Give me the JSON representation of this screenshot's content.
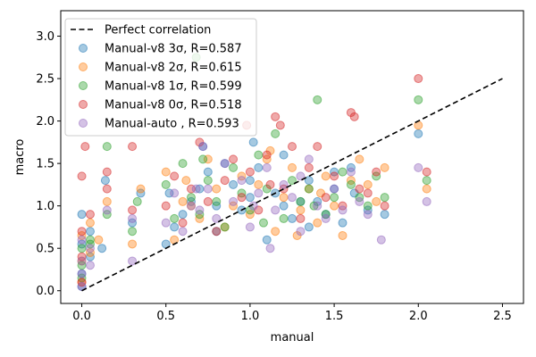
{
  "chart_data": {
    "type": "scatter",
    "title": "",
    "xlabel": "manual",
    "ylabel": "macro",
    "xlim": [
      -0.125,
      2.625
    ],
    "ylim": [
      -0.15,
      3.3
    ],
    "xticks": [
      "0.0",
      "0.5",
      "1.0",
      "1.5",
      "2.0",
      "2.5"
    ],
    "yticks": [
      "0.0",
      "0.5",
      "1.0",
      "1.5",
      "2.0",
      "2.5",
      "3.0"
    ],
    "grid": false,
    "legend_position": "top-left",
    "reference_line": {
      "name": "Perfect correlation",
      "x": [
        0,
        2.5
      ],
      "y": [
        0,
        2.5
      ],
      "color": "#000000",
      "style": "dashed"
    },
    "series": [
      {
        "name": "Manual-v8 3σ, R=0.587",
        "color": "#1f77b4",
        "x": [
          0.0,
          0.0,
          0.0,
          0.0,
          0.05,
          0.05,
          0.12,
          0.14,
          0.3,
          0.35,
          0.5,
          0.52,
          0.55,
          0.6,
          0.65,
          0.7,
          0.72,
          0.75,
          0.8,
          0.85,
          0.9,
          0.95,
          1.0,
          1.02,
          1.05,
          1.1,
          1.15,
          1.2,
          1.25,
          1.3,
          1.35,
          1.4,
          1.45,
          1.5,
          1.55,
          1.6,
          1.62,
          1.7,
          1.8,
          2.0,
          0.8,
          1.0,
          1.2,
          1.35,
          1.5
        ],
        "y": [
          0.9,
          0.55,
          0.2,
          0.05,
          0.4,
          0.7,
          0.5,
          1.3,
          0.8,
          1.15,
          0.55,
          1.15,
          0.75,
          0.9,
          1.05,
          1.2,
          1.7,
          1.4,
          1.0,
          1.5,
          1.25,
          0.95,
          1.1,
          1.75,
          1.45,
          0.6,
          1.15,
          1.6,
          0.85,
          1.05,
          1.3,
          1.05,
          0.9,
          1.2,
          0.8,
          1.45,
          1.15,
          0.95,
          0.9,
          1.85,
          0.7,
          1.3,
          1.0,
          0.75,
          1.4
        ]
      },
      {
        "name": "Manual-v8 2σ, R=0.615",
        "color": "#ff7f0e",
        "x": [
          0.0,
          0.0,
          0.0,
          0.05,
          0.05,
          0.1,
          0.15,
          0.3,
          0.35,
          0.5,
          0.55,
          0.6,
          0.62,
          0.7,
          0.75,
          0.8,
          0.85,
          0.9,
          0.95,
          1.0,
          1.05,
          1.1,
          1.15,
          1.2,
          1.25,
          1.3,
          1.35,
          1.4,
          1.45,
          1.5,
          1.55,
          1.6,
          1.65,
          1.7,
          1.75,
          1.8,
          2.0,
          2.05,
          0.65,
          1.12,
          1.28,
          1.42
        ],
        "y": [
          0.65,
          0.35,
          0.1,
          0.45,
          0.8,
          0.6,
          1.05,
          0.55,
          1.2,
          1.4,
          0.6,
          1.05,
          1.3,
          0.85,
          1.55,
          1.2,
          0.75,
          1.0,
          1.35,
          0.9,
          1.25,
          1.55,
          0.7,
          1.1,
          1.45,
          0.95,
          1.2,
          0.8,
          1.35,
          1.0,
          0.65,
          1.3,
          1.55,
          1.25,
          1.05,
          1.45,
          1.95,
          1.2,
          1.0,
          1.65,
          0.65,
          1.15
        ]
      },
      {
        "name": "Manual-v8 1σ, R=0.599",
        "color": "#2ca02c",
        "x": [
          0.0,
          0.0,
          0.0,
          0.05,
          0.05,
          0.15,
          0.15,
          0.3,
          0.33,
          0.5,
          0.55,
          0.6,
          0.65,
          0.68,
          0.7,
          0.75,
          0.8,
          0.85,
          0.9,
          0.95,
          1.0,
          1.05,
          1.1,
          1.15,
          1.2,
          1.25,
          1.3,
          1.35,
          1.4,
          1.45,
          1.5,
          1.55,
          1.6,
          1.65,
          1.7,
          1.75,
          1.8,
          2.0,
          2.05,
          1.08,
          1.38,
          0.72
        ],
        "y": [
          0.5,
          0.3,
          0.15,
          0.55,
          0.6,
          0.9,
          1.7,
          0.7,
          1.05,
          1.25,
          0.85,
          1.5,
          1.1,
          2.75,
          0.9,
          1.3,
          1.05,
          0.75,
          1.45,
          1.15,
          0.95,
          1.6,
          1.2,
          1.85,
          0.85,
          1.3,
          1.05,
          1.2,
          2.25,
          0.9,
          1.1,
          1.4,
          1.25,
          1.1,
          1.0,
          1.35,
          1.1,
          2.25,
          1.3,
          0.8,
          1.0,
          1.55
        ]
      },
      {
        "name": "Manual-v8 0σ, R=0.518",
        "color": "#d62728",
        "x": [
          0.0,
          0.0,
          0.0,
          0.0,
          0.02,
          0.05,
          0.15,
          0.15,
          0.3,
          0.3,
          0.5,
          0.55,
          0.6,
          0.65,
          0.7,
          0.75,
          0.8,
          0.85,
          0.9,
          0.95,
          1.0,
          1.05,
          1.1,
          1.15,
          1.18,
          1.2,
          1.25,
          1.3,
          1.35,
          1.4,
          1.45,
          1.5,
          1.55,
          1.6,
          1.62,
          1.65,
          1.7,
          1.75,
          1.8,
          2.0,
          2.05,
          0.98,
          1.12
        ],
        "y": [
          1.35,
          0.7,
          0.4,
          0.1,
          1.7,
          0.9,
          1.4,
          1.2,
          1.7,
          0.95,
          1.0,
          1.35,
          0.8,
          1.2,
          1.75,
          1.05,
          0.7,
          1.3,
          1.55,
          1.1,
          1.4,
          0.95,
          1.6,
          2.05,
          1.95,
          1.2,
          1.7,
          0.85,
          1.45,
          1.7,
          1.1,
          1.35,
          1.0,
          2.1,
          2.05,
          1.2,
          1.15,
          1.4,
          1.0,
          2.5,
          1.4,
          1.95,
          1.25
        ]
      },
      {
        "name": "Manual-auto , R=0.593",
        "color": "#9467bd",
        "x": [
          0.0,
          0.0,
          0.0,
          0.0,
          0.05,
          0.05,
          0.15,
          0.3,
          0.3,
          0.5,
          0.55,
          0.6,
          0.65,
          0.7,
          0.72,
          0.75,
          0.8,
          0.85,
          0.9,
          0.95,
          1.0,
          1.05,
          1.1,
          1.12,
          1.15,
          1.2,
          1.25,
          1.3,
          1.35,
          1.4,
          1.45,
          1.5,
          1.55,
          1.6,
          1.65,
          1.7,
          1.78,
          2.0,
          2.05,
          0.68,
          1.02,
          1.3
        ],
        "y": [
          0.6,
          0.35,
          0.2,
          0.05,
          0.5,
          0.3,
          0.95,
          0.35,
          0.85,
          0.8,
          1.15,
          0.7,
          1.0,
          0.95,
          1.7,
          1.2,
          0.85,
          1.5,
          1.05,
          1.3,
          0.75,
          1.15,
          1.45,
          0.5,
          0.95,
          1.25,
          1.1,
          0.7,
          1.55,
          1.0,
          0.85,
          1.2,
          0.95,
          1.4,
          1.05,
          0.9,
          0.6,
          1.45,
          1.05,
          1.2,
          1.0,
          1.35
        ]
      }
    ]
  }
}
